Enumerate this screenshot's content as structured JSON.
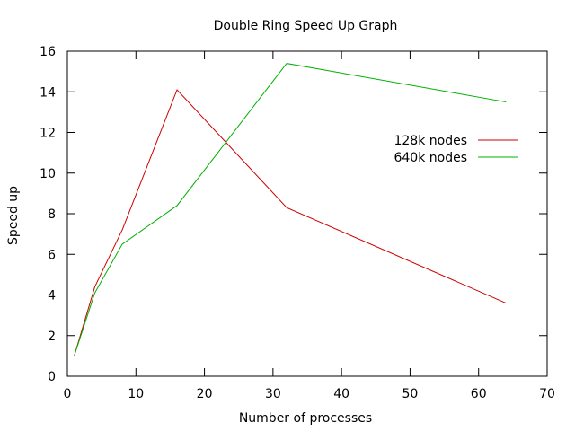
{
  "chart_data": {
    "type": "line",
    "title": "Double Ring Speed Up Graph",
    "xlabel": "Number of processes",
    "ylabel": "Speed up",
    "xlim": [
      0,
      70
    ],
    "ylim": [
      0,
      16
    ],
    "xticks": [
      0,
      10,
      20,
      30,
      40,
      50,
      60,
      70
    ],
    "yticks": [
      0,
      2,
      4,
      6,
      8,
      10,
      12,
      14,
      16
    ],
    "grid": false,
    "legend_position": "right",
    "series": [
      {
        "name": "128k nodes",
        "color": "#cc0000",
        "points": [
          [
            1,
            1.0
          ],
          [
            4,
            4.4
          ],
          [
            8,
            7.2
          ],
          [
            16,
            14.1
          ],
          [
            32,
            8.3
          ],
          [
            64,
            3.6
          ]
        ]
      },
      {
        "name": "640k nodes",
        "color": "#00b000",
        "points": [
          [
            1,
            1.0
          ],
          [
            4,
            4.1
          ],
          [
            8,
            6.5
          ],
          [
            16,
            8.4
          ],
          [
            32,
            15.4
          ],
          [
            64,
            13.5
          ]
        ]
      }
    ]
  }
}
